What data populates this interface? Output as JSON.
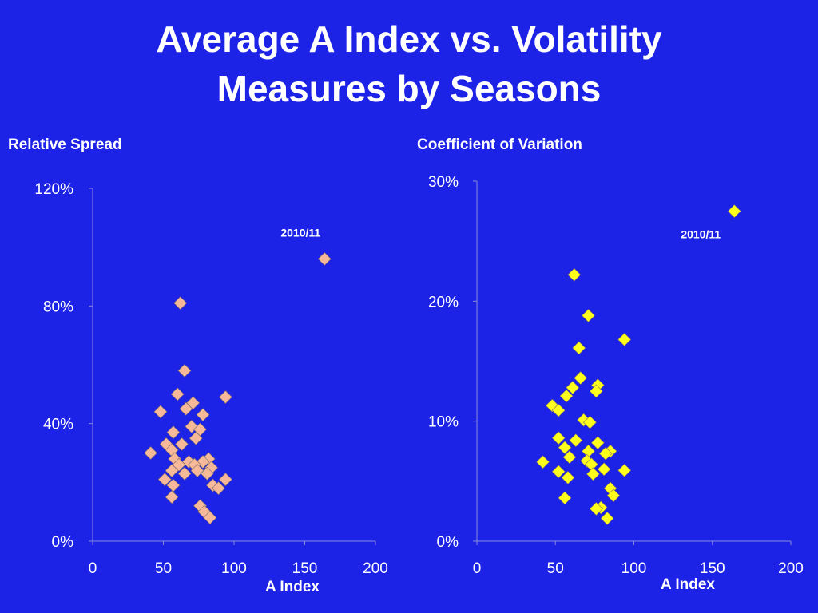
{
  "title": {
    "line1": "Average A Index vs. Volatility",
    "line2": "Measures by Seasons"
  },
  "chart_data": [
    {
      "type": "scatter",
      "title": "Relative Spread",
      "xlabel": "A Index",
      "ylabel": "",
      "xlim": [
        0,
        200
      ],
      "ylim": [
        0,
        1.2
      ],
      "x_ticks": [
        "0",
        "50",
        "100",
        "150",
        "200"
      ],
      "y_ticks": [
        "0%",
        "40%",
        "80%",
        "120%"
      ],
      "marker_color": "#f5b99a",
      "grid": false,
      "annotations": [
        {
          "text": "2010/11",
          "x": 164,
          "y": 0.96
        }
      ],
      "points": [
        {
          "x": 164,
          "y": 0.96
        },
        {
          "x": 62,
          "y": 0.81
        },
        {
          "x": 65,
          "y": 0.58
        },
        {
          "x": 60,
          "y": 0.5
        },
        {
          "x": 94,
          "y": 0.49
        },
        {
          "x": 71,
          "y": 0.47
        },
        {
          "x": 66,
          "y": 0.45
        },
        {
          "x": 48,
          "y": 0.44
        },
        {
          "x": 78,
          "y": 0.43
        },
        {
          "x": 70,
          "y": 0.39
        },
        {
          "x": 76,
          "y": 0.38
        },
        {
          "x": 57,
          "y": 0.37
        },
        {
          "x": 73,
          "y": 0.35
        },
        {
          "x": 52,
          "y": 0.33
        },
        {
          "x": 63,
          "y": 0.33
        },
        {
          "x": 56,
          "y": 0.31
        },
        {
          "x": 41,
          "y": 0.3
        },
        {
          "x": 58,
          "y": 0.28
        },
        {
          "x": 82,
          "y": 0.28
        },
        {
          "x": 68,
          "y": 0.27
        },
        {
          "x": 78,
          "y": 0.27
        },
        {
          "x": 61,
          "y": 0.26
        },
        {
          "x": 72,
          "y": 0.26
        },
        {
          "x": 84,
          "y": 0.25
        },
        {
          "x": 56,
          "y": 0.24
        },
        {
          "x": 74,
          "y": 0.24
        },
        {
          "x": 65,
          "y": 0.23
        },
        {
          "x": 81,
          "y": 0.23
        },
        {
          "x": 51,
          "y": 0.21
        },
        {
          "x": 94,
          "y": 0.21
        },
        {
          "x": 57,
          "y": 0.19
        },
        {
          "x": 85,
          "y": 0.19
        },
        {
          "x": 89,
          "y": 0.18
        },
        {
          "x": 56,
          "y": 0.15
        },
        {
          "x": 76,
          "y": 0.12
        },
        {
          "x": 79,
          "y": 0.1
        },
        {
          "x": 83,
          "y": 0.08
        }
      ]
    },
    {
      "type": "scatter",
      "title": "Coefficient of Variation",
      "xlabel": "A Index",
      "ylabel": "",
      "xlim": [
        0,
        200
      ],
      "ylim": [
        0,
        0.3
      ],
      "x_ticks": [
        "0",
        "50",
        "100",
        "150",
        "200"
      ],
      "y_ticks": [
        "0%",
        "10%",
        "20%",
        "30%"
      ],
      "marker_color": "#ffff1e",
      "grid": false,
      "annotations": [
        {
          "text": "2010/11",
          "x": 164,
          "y": 0.275
        }
      ],
      "points": [
        {
          "x": 164,
          "y": 0.275
        },
        {
          "x": 62,
          "y": 0.222
        },
        {
          "x": 71,
          "y": 0.188
        },
        {
          "x": 94,
          "y": 0.168
        },
        {
          "x": 65,
          "y": 0.161
        },
        {
          "x": 66,
          "y": 0.136
        },
        {
          "x": 77,
          "y": 0.13
        },
        {
          "x": 61,
          "y": 0.128
        },
        {
          "x": 76,
          "y": 0.125
        },
        {
          "x": 57,
          "y": 0.121
        },
        {
          "x": 48,
          "y": 0.113
        },
        {
          "x": 52,
          "y": 0.109
        },
        {
          "x": 68,
          "y": 0.101
        },
        {
          "x": 72,
          "y": 0.099
        },
        {
          "x": 52,
          "y": 0.086
        },
        {
          "x": 63,
          "y": 0.084
        },
        {
          "x": 77,
          "y": 0.082
        },
        {
          "x": 56,
          "y": 0.078
        },
        {
          "x": 71,
          "y": 0.075
        },
        {
          "x": 85,
          "y": 0.075
        },
        {
          "x": 82,
          "y": 0.073
        },
        {
          "x": 59,
          "y": 0.07
        },
        {
          "x": 70,
          "y": 0.067
        },
        {
          "x": 42,
          "y": 0.066
        },
        {
          "x": 73,
          "y": 0.064
        },
        {
          "x": 81,
          "y": 0.06
        },
        {
          "x": 94,
          "y": 0.059
        },
        {
          "x": 52,
          "y": 0.058
        },
        {
          "x": 74,
          "y": 0.056
        },
        {
          "x": 58,
          "y": 0.053
        },
        {
          "x": 85,
          "y": 0.044
        },
        {
          "x": 87,
          "y": 0.038
        },
        {
          "x": 56,
          "y": 0.036
        },
        {
          "x": 79,
          "y": 0.028
        },
        {
          "x": 76,
          "y": 0.027
        },
        {
          "x": 83,
          "y": 0.019
        }
      ]
    }
  ]
}
